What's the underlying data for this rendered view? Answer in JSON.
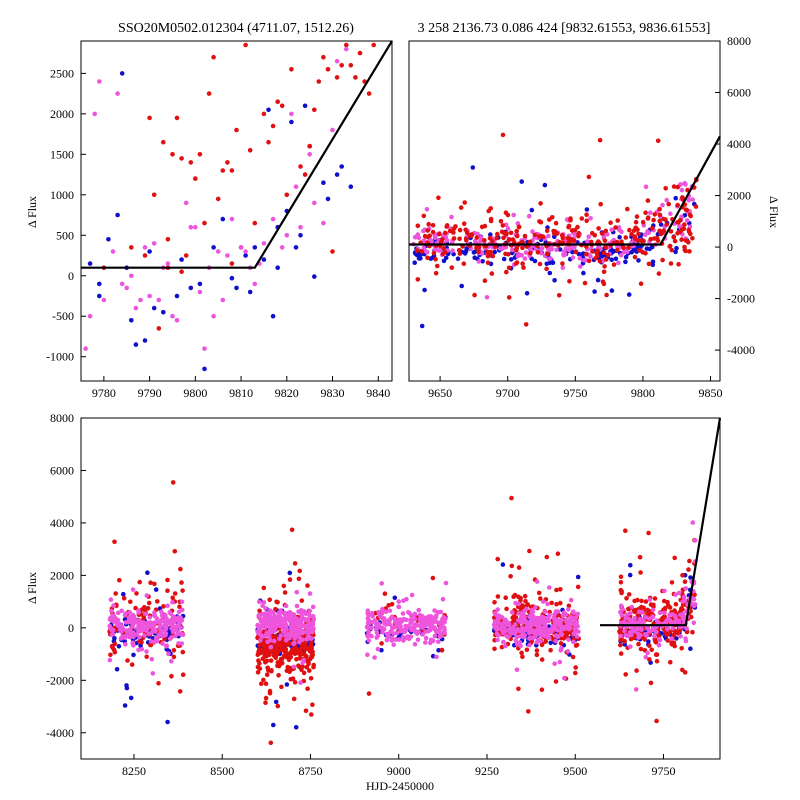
{
  "colors": {
    "blue": "#1010cc",
    "red": "#e01010",
    "pink": "#ee55dd",
    "model": "#000000"
  },
  "chart_data": [
    {
      "id": "zoom",
      "type": "scatter",
      "title": "SSO20M0502.012304 (4711.07, 1512.26)",
      "xlabel": "",
      "ylabel": "Δ Flux",
      "xlim": [
        9775,
        9843
      ],
      "ylim": [
        -1300,
        2900
      ],
      "xticks": [
        9780,
        9790,
        9800,
        9810,
        9820,
        9830,
        9840
      ],
      "yticks": [
        -1000,
        -500,
        0,
        500,
        1000,
        1500,
        2000,
        2500
      ],
      "model": {
        "x": [
          9775,
          9813,
          9843
        ],
        "y": [
          100,
          100,
          2900
        ]
      },
      "series": [
        {
          "name": "blue",
          "color_key": "blue",
          "points": [
            [
              9777,
              150
            ],
            [
              9779,
              -250
            ],
            [
              9781,
              450
            ],
            [
              9783,
              750
            ],
            [
              9784,
              2500
            ],
            [
              9786,
              -550
            ],
            [
              9787,
              -850
            ],
            [
              9789,
              -800
            ],
            [
              9791,
              -400
            ],
            [
              9793,
              -450
            ],
            [
              9796,
              -250
            ],
            [
              9799,
              -150
            ],
            [
              9801,
              -100
            ],
            [
              9802,
              -1150
            ],
            [
              9804,
              350
            ],
            [
              9806,
              700
            ],
            [
              9809,
              -150
            ],
            [
              9811,
              250
            ],
            [
              9813,
              350
            ],
            [
              9815,
              200
            ],
            [
              9816,
              2050
            ],
            [
              9817,
              -500
            ],
            [
              9818,
              600
            ],
            [
              9820,
              800
            ],
            [
              9821,
              1900
            ],
            [
              9822,
              350
            ],
            [
              9823,
              500
            ],
            [
              9824,
              2100
            ],
            [
              9825,
              1600
            ],
            [
              9826,
              -10
            ],
            [
              9828,
              1150
            ],
            [
              9829,
              950
            ],
            [
              9831,
              1250
            ],
            [
              9832,
              1350
            ],
            [
              9834,
              1100
            ],
            [
              9779,
              -100
            ],
            [
              9785,
              100
            ],
            [
              9790,
              300
            ],
            [
              9797,
              200
            ],
            [
              9808,
              -30
            ],
            [
              9812,
              -200
            ],
            [
              9818,
              100
            ]
          ]
        },
        {
          "name": "red",
          "color_key": "red",
          "points": [
            [
              9780,
              100
            ],
            [
              9786,
              350
            ],
            [
              9789,
              250
            ],
            [
              9790,
              1950
            ],
            [
              9791,
              1000
            ],
            [
              9792,
              -650
            ],
            [
              9793,
              1650
            ],
            [
              9794,
              450
            ],
            [
              9795,
              1500
            ],
            [
              9796,
              1950
            ],
            [
              9797,
              1450
            ],
            [
              9798,
              250
            ],
            [
              9799,
              1400
            ],
            [
              9800,
              1200
            ],
            [
              9801,
              1500
            ],
            [
              9802,
              650
            ],
            [
              9803,
              2250
            ],
            [
              9804,
              2700
            ],
            [
              9805,
              950
            ],
            [
              9806,
              1300
            ],
            [
              9807,
              1400
            ],
            [
              9808,
              1300
            ],
            [
              9809,
              1800
            ],
            [
              9810,
              350
            ],
            [
              9811,
              2850
            ],
            [
              9812,
              1550
            ],
            [
              9813,
              650
            ],
            [
              9815,
              2000
            ],
            [
              9816,
              1650
            ],
            [
              9817,
              1850
            ],
            [
              9818,
              2150
            ],
            [
              9819,
              2100
            ],
            [
              9820,
              1000
            ],
            [
              9821,
              2550
            ],
            [
              9822,
              2900
            ],
            [
              9823,
              1350
            ],
            [
              9824,
              1250
            ],
            [
              9825,
              1600
            ],
            [
              9826,
              2050
            ],
            [
              9827,
              2400
            ],
            [
              9828,
              2700
            ],
            [
              9829,
              2550
            ],
            [
              9830,
              300
            ],
            [
              9831,
              2450
            ],
            [
              9832,
              2600
            ],
            [
              9833,
              2850
            ],
            [
              9834,
              2600
            ],
            [
              9835,
              2450
            ],
            [
              9836,
              2750
            ],
            [
              9837,
              2400
            ],
            [
              9838,
              2250
            ],
            [
              9839,
              2850
            ],
            [
              9794,
              100
            ],
            [
              9797,
              50
            ],
            [
              9808,
              150
            ]
          ]
        },
        {
          "name": "pink",
          "color_key": "pink",
          "points": [
            [
              9776,
              -900
            ],
            [
              9777,
              -500
            ],
            [
              9778,
              2000
            ],
            [
              9779,
              2400
            ],
            [
              9780,
              -300
            ],
            [
              9782,
              300
            ],
            [
              9783,
              2250
            ],
            [
              9785,
              -150
            ],
            [
              9786,
              0
            ],
            [
              9787,
              -400
            ],
            [
              9788,
              -300
            ],
            [
              9789,
              350
            ],
            [
              9790,
              -250
            ],
            [
              9791,
              400
            ],
            [
              9792,
              -300
            ],
            [
              9793,
              100
            ],
            [
              9795,
              -500
            ],
            [
              9796,
              -550
            ],
            [
              9798,
              900
            ],
            [
              9799,
              600
            ],
            [
              9800,
              600
            ],
            [
              9801,
              -200
            ],
            [
              9802,
              -900
            ],
            [
              9803,
              100
            ],
            [
              9804,
              -500
            ],
            [
              9806,
              -300
            ],
            [
              9807,
              250
            ],
            [
              9808,
              700
            ],
            [
              9810,
              350
            ],
            [
              9811,
              300
            ],
            [
              9812,
              100
            ],
            [
              9814,
              150
            ],
            [
              9815,
              400
            ],
            [
              9817,
              700
            ],
            [
              9819,
              350
            ],
            [
              9820,
              500
            ],
            [
              9821,
              2000
            ],
            [
              9822,
              1100
            ],
            [
              9823,
              600
            ],
            [
              9825,
              1500
            ],
            [
              9826,
              900
            ],
            [
              9828,
              650
            ],
            [
              9830,
              1800
            ],
            [
              9831,
              2650
            ],
            [
              9833,
              2800
            ],
            [
              9784,
              -100
            ],
            [
              9794,
              150
            ],
            [
              9805,
              300
            ],
            [
              9813,
              -100
            ]
          ]
        }
      ]
    },
    {
      "id": "season",
      "type": "scatter",
      "title": "3 258 2136.73 0.086 424 [9832.61553, 9836.61553]",
      "xlabel": "",
      "ylabel": "Δ Flux",
      "xlim": [
        9627,
        9857
      ],
      "ylim": [
        -5200,
        8000
      ],
      "xticks": [
        9650,
        9700,
        9750,
        9800,
        9850
      ],
      "yticks": [
        -4000,
        -2000,
        0,
        2000,
        4000,
        6000,
        8000
      ],
      "model": {
        "x": [
          9627,
          9813,
          9857
        ],
        "y": [
          100,
          100,
          4300
        ]
      },
      "series": [
        {
          "name": "blue",
          "color_key": "blue",
          "points": []
        },
        {
          "name": "red",
          "color_key": "red",
          "points": []
        },
        {
          "name": "pink",
          "color_key": "pink",
          "points": []
        }
      ]
    },
    {
      "id": "full",
      "type": "scatter",
      "title": "",
      "xlabel": "HJD-2450000",
      "ylabel": "Δ Flux",
      "xlim": [
        8100,
        9910
      ],
      "ylim": [
        -5000,
        8000
      ],
      "xticks": [
        8250,
        8500,
        8750,
        9000,
        9250,
        9500,
        9750
      ],
      "yticks": [
        -4000,
        -2000,
        0,
        2000,
        4000,
        6000,
        8000
      ],
      "model": {
        "x": [
          9570,
          9813,
          9910
        ],
        "y": [
          100,
          100,
          8500
        ]
      },
      "seasons": [
        {
          "x": [
            8180,
            8390
          ],
          "blue": 90,
          "red": 110,
          "pink": 220
        },
        {
          "x": [
            8600,
            8760
          ],
          "blue": 110,
          "red": 320,
          "pink": 220
        },
        {
          "x": [
            8910,
            9135
          ],
          "blue": 35,
          "red": 25,
          "pink": 230
        },
        {
          "x": [
            9270,
            9510
          ],
          "blue": 110,
          "red": 200,
          "pink": 260
        },
        {
          "x": [
            9625,
            9840
          ],
          "blue": 60,
          "red": 230,
          "pink": 150
        }
      ]
    }
  ]
}
